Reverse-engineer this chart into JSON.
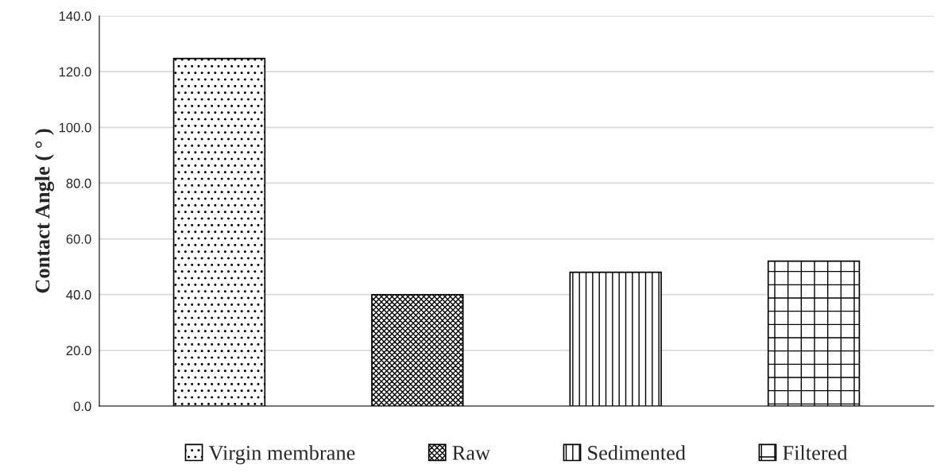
{
  "chart_data": {
    "type": "bar",
    "ylabel": "Contact Angle ( ° )",
    "categories": [
      null
    ],
    "series": [
      {
        "name": "Virgin membrane",
        "values": [
          124.7
        ]
      },
      {
        "name": "Raw",
        "values": [
          40.0
        ]
      },
      {
        "name": "Sedimented",
        "values": [
          48.0
        ]
      },
      {
        "name": "Filtered",
        "values": [
          52.0
        ]
      }
    ],
    "ylim": [
      0,
      140
    ],
    "yticks": [
      {
        "value": 0,
        "label": "0.0"
      },
      {
        "value": 20,
        "label": "20.0"
      },
      {
        "value": 40,
        "label": "40.0"
      },
      {
        "value": 60,
        "label": "60.0"
      },
      {
        "value": 80,
        "label": "80.0"
      },
      {
        "value": 100,
        "label": "100.0"
      },
      {
        "value": 120,
        "label": "120.0"
      },
      {
        "value": 140,
        "label": "140.0"
      }
    ],
    "grid": "y",
    "legend": "bottom"
  }
}
